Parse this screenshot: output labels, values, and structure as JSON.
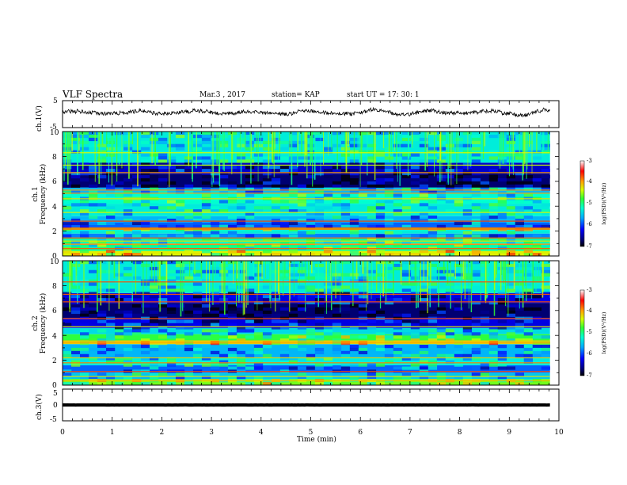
{
  "header": {
    "title": "VLF Spectra",
    "date": "Mar.3 , 2017",
    "station": "station= KAP",
    "start": "start UT = 17: 30: 1"
  },
  "chart_data": [
    {
      "type": "line",
      "name": "ch1-waveform",
      "ylabel": "ch.1(V)",
      "ylim": [
        -5,
        5
      ],
      "yticks": [
        "5",
        "-5"
      ],
      "xlim": [
        0,
        10
      ],
      "x_extent_min": 9.82,
      "baseline_v": 0.6,
      "amplitude_v": 1.4
    },
    {
      "type": "heatmap",
      "name": "ch1-spectrogram",
      "ylabel": "ch.1\nFrequency (kHz)",
      "ylabel_lines": [
        "ch.1",
        "Frequency (kHz)"
      ],
      "ylim": [
        0,
        10
      ],
      "yticks": [
        "0",
        "2",
        "4",
        "6",
        "8",
        "10"
      ],
      "xlim": [
        0,
        10
      ],
      "x_extent_min": 9.82,
      "colorbar": {
        "label": "log(PSD)(V²/Hz)",
        "range": [
          -7,
          -3
        ],
        "ticks": [
          "-3",
          "-4",
          "-5",
          "-6",
          "-7"
        ]
      },
      "bands": [
        {
          "f0": 0.0,
          "f1": 0.4,
          "logpsd": -4.3
        },
        {
          "f0": 0.4,
          "f1": 0.9,
          "logpsd": -5.0
        },
        {
          "f0": 0.9,
          "f1": 1.0,
          "logpsd": -3.4
        },
        {
          "f0": 1.0,
          "f1": 1.5,
          "logpsd": -5.1
        },
        {
          "f0": 1.5,
          "f1": 1.8,
          "logpsd": -5.8
        },
        {
          "f0": 1.8,
          "f1": 2.1,
          "logpsd": -5.3
        },
        {
          "f0": 2.1,
          "f1": 2.3,
          "logpsd": -4.5
        },
        {
          "f0": 2.3,
          "f1": 2.7,
          "logpsd": -5.9
        },
        {
          "f0": 2.7,
          "f1": 3.2,
          "logpsd": -5.6
        },
        {
          "f0": 3.2,
          "f1": 4.2,
          "logpsd": -5.3
        },
        {
          "f0": 4.2,
          "f1": 5.0,
          "logpsd": -5.2
        },
        {
          "f0": 5.0,
          "f1": 5.5,
          "logpsd": -5.6
        },
        {
          "f0": 5.5,
          "f1": 6.6,
          "logpsd": -6.7
        },
        {
          "f0": 6.6,
          "f1": 7.5,
          "logpsd": -6.4
        },
        {
          "f0": 7.5,
          "f1": 10.0,
          "logpsd": -5.3
        }
      ],
      "lines_khz": [
        0.6,
        0.95,
        1.2,
        1.45,
        2.15,
        2.25,
        2.8,
        3.5,
        4.6,
        5.05,
        5.3,
        6.7,
        7.3,
        8.3
      ]
    },
    {
      "type": "heatmap",
      "name": "ch2-spectrogram",
      "ylabel": "ch.2\nFrequency (kHz)",
      "ylabel_lines": [
        "ch.2",
        "Frequency (kHz)"
      ],
      "ylim": [
        0,
        10
      ],
      "yticks": [
        "0",
        "2",
        "4",
        "6",
        "8",
        "10"
      ],
      "xlim": [
        0,
        10
      ],
      "x_extent_min": 9.82,
      "colorbar": {
        "label": "log(PSD)(V²/Hz)",
        "range": [
          -7,
          -3
        ],
        "ticks": [
          "-3",
          "-4",
          "-5",
          "-6",
          "-7"
        ]
      },
      "bands": [
        {
          "f0": 0.0,
          "f1": 0.5,
          "logpsd": -4.6
        },
        {
          "f0": 0.5,
          "f1": 1.0,
          "logpsd": -5.5
        },
        {
          "f0": 1.0,
          "f1": 1.6,
          "logpsd": -5.9
        },
        {
          "f0": 1.6,
          "f1": 2.2,
          "logpsd": -5.3
        },
        {
          "f0": 2.2,
          "f1": 3.3,
          "logpsd": -5.6
        },
        {
          "f0": 3.3,
          "f1": 3.6,
          "logpsd": -4.2
        },
        {
          "f0": 3.6,
          "f1": 4.1,
          "logpsd": -4.8
        },
        {
          "f0": 4.1,
          "f1": 4.6,
          "logpsd": -5.4
        },
        {
          "f0": 4.6,
          "f1": 5.4,
          "logpsd": -6.3
        },
        {
          "f0": 5.4,
          "f1": 6.6,
          "logpsd": -6.7
        },
        {
          "f0": 6.6,
          "f1": 7.4,
          "logpsd": -6.3
        },
        {
          "f0": 7.4,
          "f1": 10.0,
          "logpsd": -5.3
        }
      ],
      "lines_khz": [
        0.35,
        0.7,
        1.1,
        1.8,
        2.2,
        3.4,
        3.55,
        4.7,
        5.35,
        6.7,
        7.3,
        8.3
      ]
    },
    {
      "type": "line",
      "name": "ch3-waveform",
      "ylabel": "ch.3(V)",
      "ylim": [
        -5,
        5
      ],
      "yticks": [
        "5",
        "0",
        "-5"
      ],
      "xlim": [
        0,
        10
      ],
      "x_extent_min": 9.82,
      "baseline_v": 0.0,
      "amplitude_v": 0.05
    }
  ],
  "xaxis": {
    "label": "Time (min)",
    "ticks": [
      "0",
      "1",
      "2",
      "3",
      "4",
      "5",
      "6",
      "7",
      "8",
      "9",
      "10"
    ]
  }
}
